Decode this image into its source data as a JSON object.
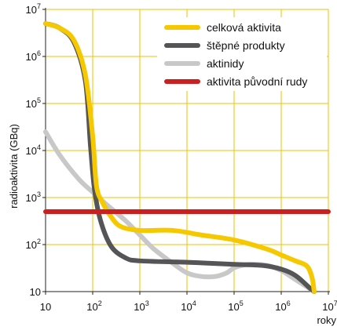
{
  "chart_data": {
    "type": "line",
    "xscale": "log",
    "yscale": "log",
    "xlim": [
      10,
      10000000
    ],
    "ylim": [
      10,
      10000000
    ],
    "grid": true,
    "grid_color": "#f2c200",
    "legend_position": "top-right",
    "xlabel": "roky",
    "ylabel": "radioaktivita (GBq)",
    "x_ticks": [
      {
        "base": "10",
        "exp": ""
      },
      {
        "base": "10",
        "exp": "2"
      },
      {
        "base": "10",
        "exp": "3"
      },
      {
        "base": "10",
        "exp": "4"
      },
      {
        "base": "10",
        "exp": "5"
      },
      {
        "base": "10",
        "exp": "6"
      },
      {
        "base": "10",
        "exp": "7"
      }
    ],
    "y_ticks": [
      {
        "base": "10",
        "exp": ""
      },
      {
        "base": "10",
        "exp": "2"
      },
      {
        "base": "10",
        "exp": "3"
      },
      {
        "base": "10",
        "exp": "4"
      },
      {
        "base": "10",
        "exp": "5"
      },
      {
        "base": "10",
        "exp": "6"
      },
      {
        "base": "10",
        "exp": "7"
      }
    ],
    "series": [
      {
        "name": "aktinidy",
        "color": "#c8c8c8",
        "points": [
          [
            10,
            25000
          ],
          [
            20,
            8000
          ],
          [
            50,
            2500
          ],
          [
            100,
            1300
          ],
          [
            200,
            700
          ],
          [
            500,
            320
          ],
          [
            1000,
            160
          ],
          [
            2000,
            80
          ],
          [
            5000,
            40
          ],
          [
            10000,
            25
          ],
          [
            20000,
            21
          ],
          [
            40000,
            21
          ],
          [
            70000,
            25
          ],
          [
            100000,
            32
          ],
          [
            200000,
            38
          ],
          [
            500000,
            36
          ],
          [
            1000000,
            28
          ],
          [
            2000000,
            18
          ],
          [
            5000000,
            10
          ]
        ]
      },
      {
        "name": "štěpné produkty",
        "color": "#555558",
        "points": [
          [
            10,
            5000000
          ],
          [
            20,
            4000000
          ],
          [
            40,
            2000000
          ],
          [
            70,
            300000
          ],
          [
            90,
            12000
          ],
          [
            110,
            1400
          ],
          [
            150,
            300
          ],
          [
            250,
            90
          ],
          [
            500,
            52
          ],
          [
            1000,
            45
          ],
          [
            10000,
            42
          ],
          [
            100000,
            38
          ],
          [
            400000,
            36
          ],
          [
            1000000,
            30
          ],
          [
            2000000,
            22
          ],
          [
            4000000,
            12
          ],
          [
            5000000,
            10
          ]
        ]
      },
      {
        "name": "celková aktivita",
        "color": "#f5c800",
        "points": [
          [
            10,
            5000000
          ],
          [
            20,
            4000000
          ],
          [
            40,
            2200000
          ],
          [
            70,
            400000
          ],
          [
            100,
            20000
          ],
          [
            120,
            1800
          ],
          [
            160,
            800
          ],
          [
            250,
            380
          ],
          [
            400,
            240
          ],
          [
            1000,
            200
          ],
          [
            5000,
            200
          ],
          [
            20000,
            160
          ],
          [
            100000,
            125
          ],
          [
            500000,
            80
          ],
          [
            1000000,
            60
          ],
          [
            2000000,
            45
          ],
          [
            3500000,
            35
          ],
          [
            4500000,
            20
          ],
          [
            5000000,
            10
          ]
        ]
      },
      {
        "name": "aktivita původní rudy",
        "color": "#cc1f1f",
        "points": [
          [
            10,
            500
          ],
          [
            10000000,
            500
          ]
        ]
      }
    ],
    "legend_order": [
      "celková aktivita",
      "štěpné produkty",
      "aktinidy",
      "aktivita původní rudy"
    ]
  }
}
